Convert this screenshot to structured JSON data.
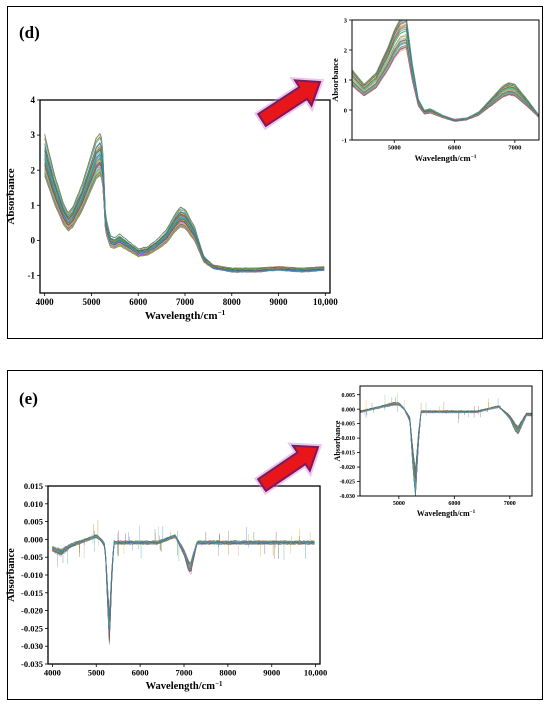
{
  "colors": {
    "arrow_fill": "#e8151b",
    "arrow_edge": "#7a1a60",
    "arrow_glow": "#d77fd8"
  },
  "panels": {
    "d": {
      "label": "(d)",
      "main": {
        "xlabel": "Wavelength/cm",
        "xlabel_sup": "−1",
        "ylabel": "Absorbance",
        "xticks": [
          "4000",
          "5000",
          "6000",
          "7000",
          "8000",
          "9000",
          "10,000"
        ],
        "yticks": [
          "-1",
          "0",
          "1",
          "2",
          "3",
          "4"
        ]
      },
      "inset": {
        "xlabel": "Wavelength/cm",
        "xlabel_sup": "−1",
        "ylabel": "Absorbance",
        "xticks": [
          "5000",
          "6000",
          "7000"
        ],
        "yticks": [
          "-1",
          "0",
          "1",
          "2",
          "3"
        ]
      }
    },
    "e": {
      "label": "(e)",
      "main": {
        "xlabel": "Wavelength/cm",
        "xlabel_sup": "−1",
        "ylabel": "Absorbance",
        "xticks": [
          "4000",
          "5000",
          "6000",
          "7000",
          "8000",
          "9000",
          "10,000"
        ],
        "yticks": [
          "0.015",
          "0.010",
          "0.005",
          "0.000",
          "-0.005",
          "-0.010",
          "-0.015",
          "-0.020",
          "-0.025",
          "-0.030",
          "-0.035"
        ]
      },
      "inset": {
        "xlabel": "Wavelength/cm",
        "xlabel_sup": "−1",
        "ylabel": "Absorbance",
        "xticks": [
          "5000",
          "6000",
          "7000"
        ],
        "yticks": [
          "0.005",
          "0.000",
          "-0.005",
          "-0.010",
          "-0.015",
          "-0.020",
          "-0.025",
          "-0.030"
        ]
      }
    }
  },
  "chart_data": [
    {
      "type": "line",
      "x_key": [
        4000,
        4200,
        4400,
        4500,
        4600,
        4800,
        5000,
        5100,
        5200,
        5250,
        5300,
        5400,
        5500,
        5600,
        5800,
        6000,
        6200,
        6400,
        6600,
        6800,
        6900,
        7000,
        7200,
        7400,
        7600,
        8000,
        8500,
        9000,
        9500,
        10000
      ],
      "y_key": [
        2.7,
        1.7,
        0.9,
        0.65,
        0.8,
        1.4,
        2.2,
        2.6,
        2.75,
        2.2,
        0.6,
        0.05,
        0.0,
        0.1,
        -0.1,
        -0.3,
        -0.25,
        -0.05,
        0.2,
        0.65,
        0.8,
        0.75,
        0.3,
        -0.5,
        -0.75,
        -0.85,
        -0.85,
        -0.8,
        -0.85,
        -0.8
      ],
      "n_series": 60,
      "xlim": [
        3900,
        10100
      ],
      "ylim": [
        -1.5,
        4
      ],
      "xlabel": "Wavelength/cm−1",
      "ylabel": "Absorbance"
    },
    {
      "type": "line",
      "x_key": [
        4300,
        4500,
        4700,
        4900,
        5000,
        5100,
        5200,
        5300,
        5400,
        5500,
        5600,
        5800,
        6000,
        6200,
        6400,
        6600,
        6800,
        6900,
        7000,
        7200,
        7400
      ],
      "y_key": [
        1.2,
        0.75,
        1.1,
        1.9,
        2.4,
        2.75,
        2.85,
        1.4,
        0.3,
        -0.05,
        0.0,
        -0.2,
        -0.35,
        -0.3,
        -0.1,
        0.3,
        0.7,
        0.8,
        0.75,
        0.3,
        -0.2
      ],
      "n_series": 60,
      "xlim": [
        4300,
        7400
      ],
      "ylim": [
        -1,
        3
      ],
      "xlabel": "Wavelength/cm−1",
      "ylabel": "Absorbance"
    },
    {
      "type": "line",
      "x_key": [
        4000,
        4200,
        4400,
        4600,
        4800,
        5000,
        5100,
        5200,
        5250,
        5300,
        5350,
        5400,
        5600,
        6000,
        6400,
        6800,
        7000,
        7100,
        7150,
        7200,
        7300,
        7500,
        8000,
        9000,
        10000
      ],
      "y_key": [
        -0.003,
        -0.004,
        -0.002,
        -0.001,
        0.0,
        0.001,
        0.0,
        -0.002,
        -0.015,
        -0.028,
        -0.012,
        -0.001,
        -0.001,
        -0.001,
        -0.001,
        0.001,
        -0.004,
        -0.008,
        -0.009,
        -0.006,
        -0.001,
        -0.001,
        -0.001,
        -0.001,
        -0.001
      ],
      "n_series": 60,
      "xlim": [
        3900,
        10100
      ],
      "ylim": [
        -0.035,
        0.015
      ],
      "xlabel": "Wavelength/cm−1",
      "ylabel": "Absorbance"
    },
    {
      "type": "line",
      "x_key": [
        4300,
        4500,
        4700,
        4900,
        5000,
        5100,
        5200,
        5250,
        5300,
        5350,
        5400,
        5600,
        6000,
        6400,
        6800,
        7000,
        7100,
        7150,
        7200,
        7300,
        7400
      ],
      "y_key": [
        -0.001,
        0.0,
        0.001,
        0.002,
        0.002,
        0.0,
        -0.004,
        -0.018,
        -0.028,
        -0.012,
        -0.001,
        -0.001,
        -0.001,
        -0.001,
        0.001,
        -0.003,
        -0.007,
        -0.008,
        -0.006,
        -0.002,
        -0.002
      ],
      "n_series": 60,
      "xlim": [
        4300,
        7400
      ],
      "ylim": [
        -0.03,
        0.008
      ],
      "xlabel": "Wavelength/cm−1",
      "ylabel": "Absorbance"
    }
  ]
}
